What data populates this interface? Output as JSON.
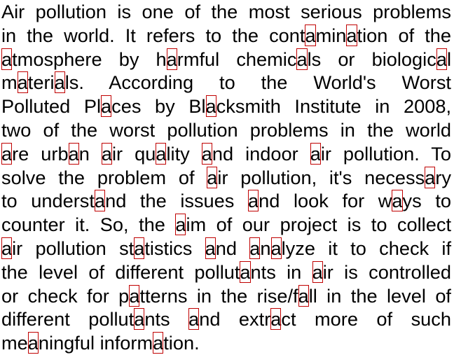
{
  "document": {
    "highlight_color": "#c00000",
    "lines": [
      [
        {
          "t": "Air pollution is one of the most serious problems"
        }
      ],
      [
        {
          "t": "in the world. It refers to the cont"
        },
        {
          "t": "a",
          "hl": true
        },
        {
          "t": "min"
        },
        {
          "t": "a",
          "hl": true
        },
        {
          "t": "tion of the"
        }
      ],
      [
        {
          "t": "a",
          "hl": true
        },
        {
          "t": "tmosphere by h"
        },
        {
          "t": "a",
          "hl": true
        },
        {
          "t": "rmful chemic"
        },
        {
          "t": "a",
          "hl": true
        },
        {
          "t": "ls or biologic"
        },
        {
          "t": "a",
          "hl": true
        },
        {
          "t": "l"
        }
      ],
      [
        {
          "t": "m"
        },
        {
          "t": "a",
          "hl": true
        },
        {
          "t": "teri"
        },
        {
          "t": "a",
          "hl": true
        },
        {
          "t": "ls. According to the World's Worst"
        }
      ],
      [
        {
          "t": "Polluted Pl"
        },
        {
          "t": "a",
          "hl": true
        },
        {
          "t": "ces by Bl"
        },
        {
          "t": "a",
          "hl": true
        },
        {
          "t": "cksmith Institute in 2008,"
        }
      ],
      [
        {
          "t": "two of the worst pollution problems in the world"
        }
      ],
      [
        {
          "t": "a",
          "hl": true
        },
        {
          "t": "re urb"
        },
        {
          "t": "a",
          "hl": true
        },
        {
          "t": "n "
        },
        {
          "t": "a",
          "hl": true
        },
        {
          "t": "ir qu"
        },
        {
          "t": "a",
          "hl": true
        },
        {
          "t": "lity "
        },
        {
          "t": "a",
          "hl": true
        },
        {
          "t": "nd indoor "
        },
        {
          "t": "a",
          "hl": true
        },
        {
          "t": "ir pollution. To"
        }
      ],
      [
        {
          "t": "solve the problem of "
        },
        {
          "t": "a",
          "hl": true
        },
        {
          "t": "ir pollution, it's necess"
        },
        {
          "t": "a",
          "hl": true
        },
        {
          "t": "ry"
        }
      ],
      [
        {
          "t": "to underst"
        },
        {
          "t": "a",
          "hl": true
        },
        {
          "t": "nd the issues "
        },
        {
          "t": "a",
          "hl": true
        },
        {
          "t": "nd look for w"
        },
        {
          "t": "a",
          "hl": true
        },
        {
          "t": "ys to"
        }
      ],
      [
        {
          "t": "counter it. So, the "
        },
        {
          "t": "a",
          "hl": true
        },
        {
          "t": "im of our project is to collect"
        }
      ],
      [
        {
          "t": "a",
          "hl": true
        },
        {
          "t": "ir pollution st"
        },
        {
          "t": "a",
          "hl": true
        },
        {
          "t": "tistics "
        },
        {
          "t": "a",
          "hl": true
        },
        {
          "t": "nd "
        },
        {
          "t": "a",
          "hl": true
        },
        {
          "t": "n"
        },
        {
          "t": "a",
          "hl": true
        },
        {
          "t": "lyze it to check if"
        }
      ],
      [
        {
          "t": "the level of different pollut"
        },
        {
          "t": "a",
          "hl": true
        },
        {
          "t": "nts in "
        },
        {
          "t": "a",
          "hl": true
        },
        {
          "t": "ir is controlled"
        }
      ],
      [
        {
          "t": "or check for p"
        },
        {
          "t": "a",
          "hl": true
        },
        {
          "t": "tterns in the rise/f"
        },
        {
          "t": "a",
          "hl": true
        },
        {
          "t": "ll in the level of"
        }
      ],
      [
        {
          "t": "different pollut"
        },
        {
          "t": "a",
          "hl": true
        },
        {
          "t": "nts "
        },
        {
          "t": "a",
          "hl": true
        },
        {
          "t": "nd extr"
        },
        {
          "t": "a",
          "hl": true
        },
        {
          "t": "ct more of such"
        }
      ],
      [
        {
          "t": "me"
        },
        {
          "t": "a",
          "hl": true
        },
        {
          "t": "ningful inform"
        },
        {
          "t": "a",
          "hl": true
        },
        {
          "t": "tion."
        }
      ]
    ]
  }
}
